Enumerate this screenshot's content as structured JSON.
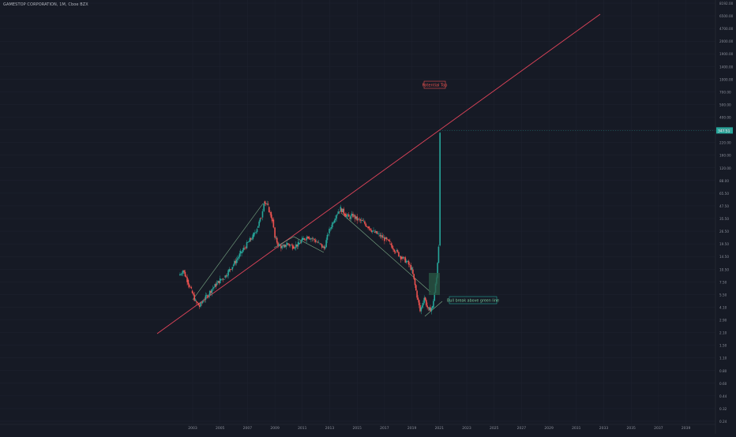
{
  "header": {
    "symbol_line": "GAMESTOP CORPORATION, 1M, Cboe BZX"
  },
  "colors": {
    "background": "#161a25",
    "grid": "#1f2330",
    "axis_text": "#8a8e99",
    "bull": "#26a69a",
    "bear": "#ef5350",
    "resistance_line": "#e0445a",
    "channel_line": "#7fb08a",
    "box_fill": "#2a5a45",
    "price_tag": "#26a69a"
  },
  "chart_data": {
    "type": "line",
    "title": "",
    "xlabel": "",
    "ylabel": "",
    "y_scale": "log",
    "ylim": [
      0.24,
      8192
    ],
    "x_ticks": [
      "2003",
      "2005",
      "2007",
      "2009",
      "2011",
      "2013",
      "2015",
      "2017",
      "2019",
      "2021",
      "2023",
      "2025",
      "2027",
      "2029",
      "2031",
      "2033",
      "2035",
      "2037",
      "2039"
    ],
    "y_ticks": [
      "8192.00",
      "6500.00",
      "4700.00",
      "2000.00",
      "1900.00",
      "1400.00",
      "1000.00",
      "700.00",
      "500.00",
      "400.00",
      "300.00",
      "220.00",
      "160.00",
      "120.00",
      "88.00",
      "65.50",
      "47.50",
      "35.50",
      "26.50",
      "19.50",
      "14.50",
      "10.50",
      "7.50",
      "5.50",
      "4.10",
      "2.90",
      "2.10",
      "1.50",
      "1.10",
      "0.80",
      "0.60",
      "0.44",
      "0.32",
      "0.24"
    ],
    "last_price_label": "347.51",
    "last_price": 347.51,
    "series": [
      {
        "points": [
          [
            2002.0,
            9.5
          ],
          [
            2002.3,
            10.8
          ],
          [
            2002.6,
            8.5
          ],
          [
            2002.9,
            6.5
          ],
          [
            2003.2,
            5.0
          ],
          [
            2003.5,
            4.4
          ],
          [
            2003.8,
            5.2
          ],
          [
            2004.1,
            5.8
          ],
          [
            2004.4,
            6.8
          ],
          [
            2004.7,
            7.5
          ],
          [
            2005.0,
            8.5
          ],
          [
            2005.3,
            9.0
          ],
          [
            2005.6,
            10.5
          ],
          [
            2005.9,
            12.0
          ],
          [
            2006.2,
            14.0
          ],
          [
            2006.5,
            16.5
          ],
          [
            2006.8,
            19.0
          ],
          [
            2007.1,
            22.0
          ],
          [
            2007.4,
            25.0
          ],
          [
            2007.7,
            31.0
          ],
          [
            2008.0,
            40.0
          ],
          [
            2008.2,
            60.0
          ],
          [
            2008.5,
            52.0
          ],
          [
            2008.8,
            38.0
          ],
          [
            2009.0,
            24.0
          ],
          [
            2009.3,
            20.0
          ],
          [
            2009.6,
            19.0
          ],
          [
            2009.9,
            21.0
          ],
          [
            2010.3,
            19.5
          ],
          [
            2010.7,
            20.5
          ],
          [
            2011.0,
            23.0
          ],
          [
            2011.4,
            25.0
          ],
          [
            2011.8,
            23.5
          ],
          [
            2012.2,
            21.0
          ],
          [
            2012.6,
            18.5
          ],
          [
            2012.9,
            27.0
          ],
          [
            2013.2,
            35.0
          ],
          [
            2013.5,
            44.0
          ],
          [
            2013.8,
            50.0
          ],
          [
            2014.1,
            44.0
          ],
          [
            2014.4,
            40.0
          ],
          [
            2014.7,
            42.0
          ],
          [
            2015.0,
            38.0
          ],
          [
            2015.4,
            36.0
          ],
          [
            2015.8,
            32.0
          ],
          [
            2016.2,
            28.0
          ],
          [
            2016.6,
            26.0
          ],
          [
            2017.0,
            23.5
          ],
          [
            2017.4,
            21.0
          ],
          [
            2017.8,
            17.5
          ],
          [
            2018.2,
            15.0
          ],
          [
            2018.6,
            13.5
          ],
          [
            2019.0,
            11.0
          ],
          [
            2019.3,
            6.5
          ],
          [
            2019.6,
            3.9
          ],
          [
            2019.9,
            5.5
          ],
          [
            2020.2,
            4.0
          ],
          [
            2020.5,
            4.3
          ],
          [
            2020.8,
            9.0
          ],
          [
            2020.95,
            20.0
          ],
          [
            2021.05,
            347.51
          ]
        ]
      }
    ],
    "annotations": {
      "top_label": "Potential Top",
      "box_label": "Bull break above green line"
    }
  }
}
